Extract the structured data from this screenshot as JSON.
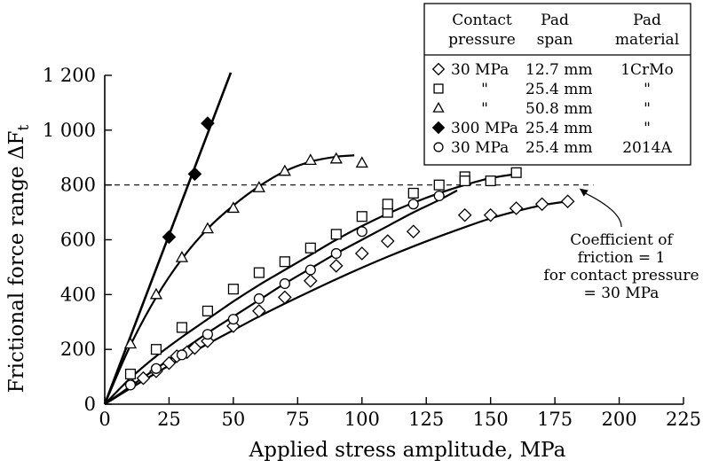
{
  "chart_data": {
    "type": "scatter",
    "xlabel": "Applied stress amplitude, MPa",
    "ylabel": "Frictional force range ΔF",
    "ylabel_sub": "t",
    "xlim": [
      0,
      225
    ],
    "ylim": [
      0,
      1200
    ],
    "x_ticks": [
      0,
      25,
      50,
      75,
      100,
      125,
      150,
      175,
      200,
      225
    ],
    "y_ticks": [
      0,
      200,
      400,
      600,
      800,
      1000,
      1200
    ],
    "y_tick_labels": [
      "0",
      "200",
      "400",
      "600",
      "800",
      "1 000",
      "1 200"
    ],
    "grid": false,
    "reference_line": {
      "y": 800,
      "x_range": [
        0,
        190
      ],
      "style": "dashed"
    },
    "annotation": {
      "lines": [
        "Coefficient of",
        "friction = 1",
        "for contact pressure",
        "= 30 MPa"
      ],
      "points_to": {
        "x": 188,
        "y": 800
      }
    },
    "legend": {
      "placement": "top-right",
      "headers": [
        [
          "Contact",
          "pressure"
        ],
        [
          "Pad",
          "span"
        ],
        [
          "Pad",
          "material"
        ]
      ],
      "rows": [
        {
          "marker": "diamond-open",
          "pressure": "30 MPa",
          "span": "12.7 mm",
          "material": "1CrMo"
        },
        {
          "marker": "square-open",
          "pressure": "\"",
          "span": "25.4 mm",
          "material": "\""
        },
        {
          "marker": "triangle-open",
          "pressure": "\"",
          "span": "50.8 mm",
          "material": "\""
        },
        {
          "marker": "diamond-filled",
          "pressure": "300 MPa",
          "span": "25.4 mm",
          "material": "\""
        },
        {
          "marker": "circle-open",
          "pressure": "30 MPa",
          "span": "25.4 mm",
          "material": "2014A"
        }
      ]
    },
    "series": [
      {
        "marker": "diamond-open",
        "points": [
          [
            10,
            75
          ],
          [
            15,
            95
          ],
          [
            20,
            120
          ],
          [
            25,
            150
          ],
          [
            28,
            175
          ],
          [
            32,
            190
          ],
          [
            35,
            205
          ],
          [
            40,
            230
          ],
          [
            50,
            285
          ],
          [
            60,
            340
          ],
          [
            70,
            390
          ],
          [
            80,
            450
          ],
          [
            90,
            505
          ],
          [
            100,
            550
          ],
          [
            110,
            595
          ],
          [
            120,
            630
          ],
          [
            140,
            690
          ],
          [
            150,
            690
          ],
          [
            160,
            715
          ],
          [
            170,
            730
          ],
          [
            180,
            740
          ]
        ],
        "fit": [
          [
            0,
            0
          ],
          [
            10,
            58
          ],
          [
            20,
            114
          ],
          [
            30,
            168
          ],
          [
            40,
            220
          ],
          [
            50,
            270
          ],
          [
            60,
            320
          ],
          [
            70,
            367
          ],
          [
            80,
            412
          ],
          [
            90,
            456
          ],
          [
            100,
            498
          ],
          [
            110,
            538
          ],
          [
            120,
            576
          ],
          [
            130,
            612
          ],
          [
            140,
            646
          ],
          [
            150,
            678
          ],
          [
            160,
            704
          ],
          [
            170,
            726
          ],
          [
            180,
            740
          ]
        ]
      },
      {
        "marker": "square-open",
        "points": [
          [
            10,
            110
          ],
          [
            20,
            200
          ],
          [
            30,
            280
          ],
          [
            40,
            340
          ],
          [
            50,
            420
          ],
          [
            60,
            480
          ],
          [
            70,
            520
          ],
          [
            80,
            570
          ],
          [
            90,
            620
          ],
          [
            100,
            685
          ],
          [
            110,
            700
          ],
          [
            110,
            730
          ],
          [
            120,
            770
          ],
          [
            130,
            800
          ],
          [
            140,
            830
          ],
          [
            140,
            815
          ],
          [
            150,
            815
          ],
          [
            160,
            845
          ]
        ],
        "fit": [
          [
            0,
            0
          ],
          [
            10,
            95
          ],
          [
            20,
            175
          ],
          [
            30,
            245
          ],
          [
            40,
            310
          ],
          [
            50,
            375
          ],
          [
            60,
            435
          ],
          [
            70,
            490
          ],
          [
            80,
            545
          ],
          [
            90,
            600
          ],
          [
            100,
            650
          ],
          [
            110,
            695
          ],
          [
            120,
            735
          ],
          [
            130,
            770
          ],
          [
            140,
            800
          ],
          [
            150,
            825
          ],
          [
            160,
            840
          ]
        ]
      },
      {
        "marker": "triangle-open",
        "points": [
          [
            10,
            220
          ],
          [
            20,
            400
          ],
          [
            30,
            535
          ],
          [
            40,
            640
          ],
          [
            50,
            715
          ],
          [
            60,
            790
          ],
          [
            70,
            850
          ],
          [
            80,
            890
          ],
          [
            90,
            895
          ],
          [
            100,
            880
          ]
        ],
        "fit": [
          [
            0,
            0
          ],
          [
            10,
            215
          ],
          [
            20,
            390
          ],
          [
            30,
            530
          ],
          [
            40,
            640
          ],
          [
            50,
            725
          ],
          [
            60,
            795
          ],
          [
            70,
            850
          ],
          [
            80,
            885
          ],
          [
            90,
            903
          ],
          [
            97,
            908
          ]
        ]
      },
      {
        "marker": "diamond-filled",
        "points": [
          [
            25,
            610
          ],
          [
            35,
            840
          ],
          [
            40,
            1025
          ]
        ],
        "fit": [
          [
            0,
            0
          ],
          [
            49,
            1210
          ]
        ]
      },
      {
        "marker": "circle-open",
        "points": [
          [
            10,
            70
          ],
          [
            20,
            130
          ],
          [
            30,
            180
          ],
          [
            40,
            255
          ],
          [
            50,
            310
          ],
          [
            60,
            385
          ],
          [
            70,
            440
          ],
          [
            80,
            490
          ],
          [
            90,
            550
          ],
          [
            100,
            630
          ],
          [
            120,
            730
          ],
          [
            130,
            760
          ]
        ],
        "fit": [
          [
            0,
            0
          ],
          [
            10,
            65
          ],
          [
            20,
            130
          ],
          [
            30,
            195
          ],
          [
            40,
            260
          ],
          [
            50,
            320
          ],
          [
            60,
            380
          ],
          [
            70,
            440
          ],
          [
            80,
            495
          ],
          [
            90,
            550
          ],
          [
            100,
            600
          ],
          [
            110,
            650
          ],
          [
            120,
            700
          ],
          [
            130,
            745
          ],
          [
            137,
            780
          ]
        ]
      }
    ]
  }
}
